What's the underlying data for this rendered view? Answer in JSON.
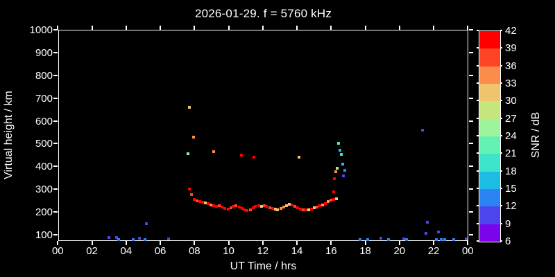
{
  "colors": {
    "background": "#000000",
    "foreground": "#ffffff"
  },
  "chart_data": {
    "type": "scatter",
    "title": "2026-01-29. f = 5760 kHz",
    "xlabel": "UT Time / hrs",
    "ylabel": "Virtual height / km",
    "xlim_hours": [
      0,
      24
    ],
    "ylim_km": [
      72,
      1000
    ],
    "grid": false,
    "xticks": [
      "00",
      "02",
      "04",
      "06",
      "08",
      "10",
      "12",
      "14",
      "16",
      "18",
      "20",
      "22",
      "00"
    ],
    "yticks": [
      "1000",
      "900",
      "800",
      "700",
      "600",
      "500",
      "400",
      "300",
      "200",
      "100"
    ],
    "colorbar": {
      "label": "SNR / dB",
      "tick_labels": [
        "6",
        "9",
        "12",
        "15",
        "18",
        "21",
        "24",
        "27",
        "30",
        "33",
        "36",
        "39",
        "42"
      ],
      "min_db": 6,
      "max_db": 42,
      "step_db": 3,
      "segment_colors_bottom_to_top": [
        "#7C04EC",
        "#4C44EC",
        "#2C84F4",
        "#1CBCE4",
        "#3CE4CC",
        "#64F2B4",
        "#9CF59C",
        "#C4E67C",
        "#F0C46C",
        "#FC8C4C",
        "#FF4426",
        "#FF0000"
      ]
    },
    "points_format": [
      "time_hours_ut",
      "virtual_height_km",
      "snr_db"
    ],
    "points": [
      [
        7.72,
        301,
        40
      ],
      [
        7.84,
        277,
        37
      ],
      [
        8.0,
        255,
        40
      ],
      [
        8.17,
        249,
        37
      ],
      [
        8.33,
        246,
        40
      ],
      [
        8.49,
        243,
        40
      ],
      [
        8.65,
        240,
        31
      ],
      [
        8.82,
        237,
        40
      ],
      [
        8.98,
        231,
        34
      ],
      [
        9.14,
        228,
        40
      ],
      [
        9.3,
        225,
        40
      ],
      [
        9.47,
        228,
        37
      ],
      [
        9.63,
        222,
        40
      ],
      [
        9.79,
        216,
        40
      ],
      [
        9.96,
        213,
        40
      ],
      [
        10.12,
        219,
        37
      ],
      [
        10.28,
        225,
        40
      ],
      [
        10.44,
        228,
        37
      ],
      [
        10.61,
        222,
        40
      ],
      [
        10.77,
        216,
        40
      ],
      [
        10.93,
        210,
        40
      ],
      [
        11.09,
        207,
        40
      ],
      [
        11.26,
        210,
        37
      ],
      [
        11.42,
        219,
        40
      ],
      [
        11.58,
        225,
        40
      ],
      [
        11.75,
        228,
        40
      ],
      [
        11.91,
        225,
        31
      ],
      [
        12.07,
        228,
        37
      ],
      [
        12.23,
        225,
        40
      ],
      [
        12.4,
        219,
        37
      ],
      [
        12.56,
        216,
        40
      ],
      [
        12.72,
        213,
        31
      ],
      [
        12.88,
        210,
        31
      ],
      [
        13.05,
        216,
        34
      ],
      [
        13.21,
        222,
        34
      ],
      [
        13.37,
        228,
        31
      ],
      [
        13.54,
        234,
        31
      ],
      [
        13.7,
        231,
        40
      ],
      [
        13.86,
        225,
        37
      ],
      [
        14.02,
        219,
        40
      ],
      [
        14.19,
        213,
        40
      ],
      [
        14.35,
        210,
        37
      ],
      [
        14.51,
        210,
        40
      ],
      [
        14.68,
        210,
        28
      ],
      [
        14.84,
        213,
        40
      ],
      [
        15.0,
        219,
        31
      ],
      [
        15.16,
        222,
        37
      ],
      [
        15.33,
        228,
        40
      ],
      [
        15.49,
        231,
        34
      ],
      [
        15.65,
        237,
        40
      ],
      [
        15.81,
        246,
        34
      ],
      [
        15.98,
        252,
        37
      ],
      [
        16.14,
        255,
        40
      ],
      [
        16.3,
        258,
        31
      ],
      [
        16.14,
        289,
        40
      ],
      [
        16.18,
        346,
        40
      ],
      [
        16.26,
        377,
        34
      ],
      [
        16.34,
        392,
        25
      ],
      [
        16.42,
        501,
        19
      ],
      [
        16.51,
        471,
        16
      ],
      [
        16.59,
        453,
        19
      ],
      [
        16.67,
        410,
        16
      ],
      [
        16.71,
        358,
        10
      ],
      [
        16.79,
        383,
        13
      ],
      [
        7.63,
        456,
        25
      ],
      [
        7.72,
        659,
        31
      ],
      [
        7.96,
        529,
        34
      ],
      [
        9.14,
        465,
        34
      ],
      [
        10.73,
        450,
        40
      ],
      [
        11.46,
        441,
        40
      ],
      [
        14.14,
        441,
        31
      ],
      [
        21.35,
        559,
        10
      ],
      [
        3.0,
        88,
        10
      ],
      [
        3.45,
        88,
        10
      ],
      [
        3.57,
        79,
        13
      ],
      [
        4.42,
        79,
        13
      ],
      [
        4.79,
        85,
        10
      ],
      [
        5.11,
        76,
        13
      ],
      [
        5.19,
        149,
        10
      ],
      [
        6.5,
        82,
        10
      ],
      [
        17.68,
        79,
        13
      ],
      [
        18.13,
        79,
        13
      ],
      [
        18.9,
        85,
        10
      ],
      [
        19.35,
        79,
        13
      ],
      [
        20.25,
        82,
        10
      ],
      [
        20.41,
        79,
        13
      ],
      [
        21.55,
        106,
        10
      ],
      [
        21.63,
        155,
        10
      ],
      [
        22.16,
        79,
        13
      ],
      [
        22.28,
        112,
        10
      ],
      [
        22.44,
        79,
        13
      ],
      [
        22.65,
        79,
        13
      ],
      [
        23.18,
        79,
        13
      ],
      [
        23.91,
        82,
        10
      ]
    ]
  }
}
